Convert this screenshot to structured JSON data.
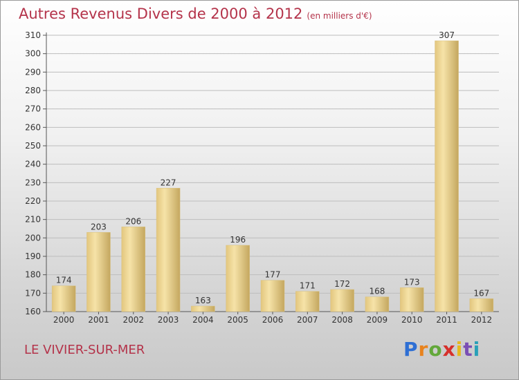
{
  "header": {
    "title": "Autres Revenus Divers de 2000 à 2012",
    "unit": "(en milliers d'€)"
  },
  "footer": {
    "commune": "LE VIVIER-SUR-MER",
    "logo_letters": [
      "P",
      "r",
      "o",
      "x",
      "i",
      "t",
      "i"
    ],
    "logo_colors": [
      "#2e6fd4",
      "#e8831e",
      "#63a83a",
      "#d6302b",
      "#e6b91e",
      "#7a4fb5",
      "#2aa0b8"
    ]
  },
  "colors": {
    "title": "#b4334a",
    "bar_light": "#f3dea0",
    "bar_dark": "#c9ad65",
    "gridline": "#bdbdbd"
  },
  "chart_data": {
    "type": "bar",
    "title": "Autres Revenus Divers de 2000 à 2012",
    "subtitle": "(en milliers d'€)",
    "xlabel": "",
    "ylabel": "",
    "categories": [
      "2000",
      "2001",
      "2002",
      "2003",
      "2004",
      "2005",
      "2006",
      "2007",
      "2008",
      "2009",
      "2010",
      "2011",
      "2012"
    ],
    "values": [
      174,
      203,
      206,
      227,
      163,
      196,
      177,
      171,
      172,
      168,
      173,
      307,
      167
    ],
    "ylim": [
      160,
      310
    ],
    "yticks": [
      160,
      170,
      180,
      190,
      200,
      210,
      220,
      230,
      240,
      250,
      260,
      270,
      280,
      290,
      300,
      310
    ],
    "grid": true,
    "data_labels": true
  }
}
